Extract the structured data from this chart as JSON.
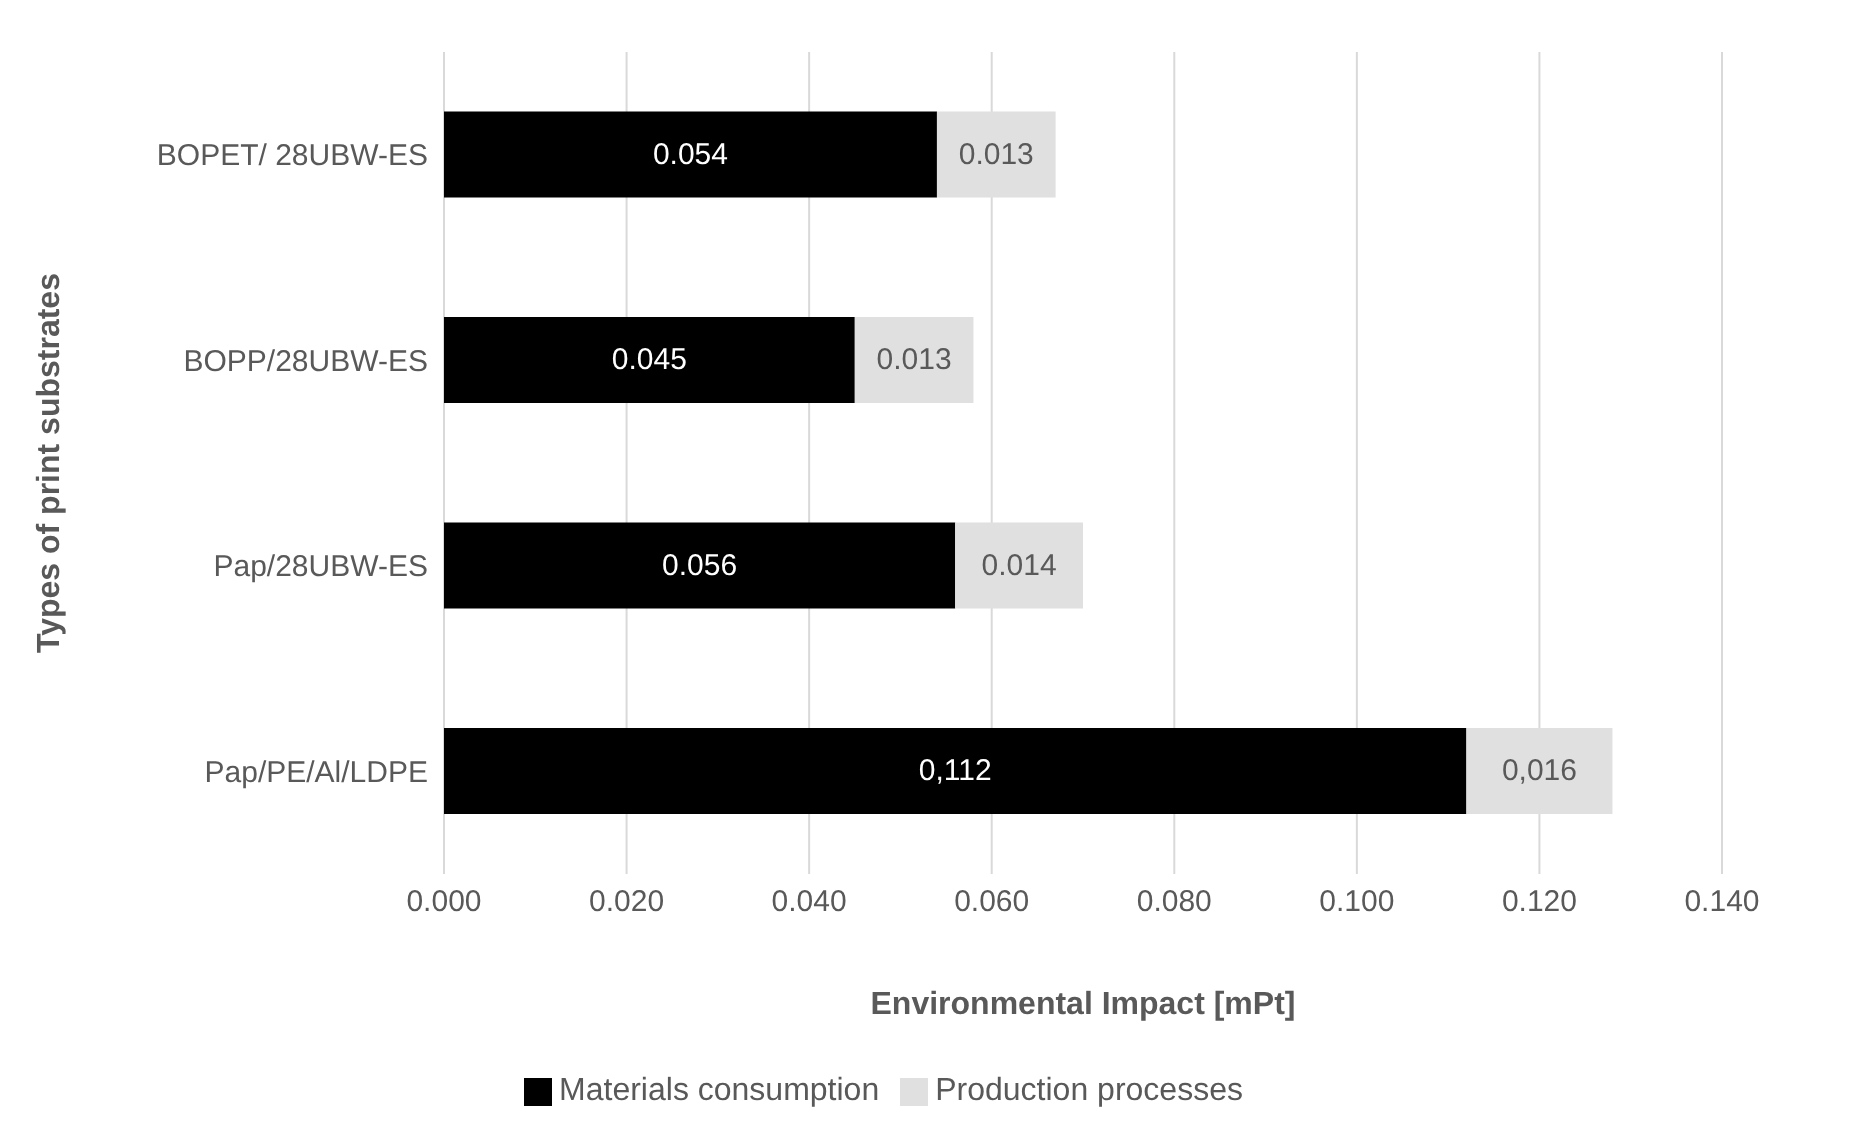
{
  "chart_data": {
    "type": "bar",
    "orientation": "horizontal",
    "stacked": true,
    "xlabel": "Environmental Impact [mPt]",
    "ylabel": "Types of print substrates",
    "categories": [
      "BOPET/ 28UBW-ES",
      "BOPP/28UBW-ES",
      "Pap/28UBW-ES",
      "Pap/PE/Al/LDPE"
    ],
    "series": [
      {
        "name": "Materials consumption",
        "color": "#000000",
        "values": [
          0.054,
          0.045,
          0.056,
          0.112
        ],
        "value_labels": [
          "0.054",
          "0.045",
          "0.056",
          "0,112"
        ]
      },
      {
        "name": "Production processes",
        "color": "#e0e0e0",
        "values": [
          0.013,
          0.013,
          0.014,
          0.016
        ],
        "value_labels": [
          "0.013",
          "0.013",
          "0.014",
          "0,016"
        ]
      }
    ],
    "xlim": [
      0,
      0.14
    ],
    "xticks": [
      {
        "value": 0,
        "label": "0.000"
      },
      {
        "value": 0.02,
        "label": "0.020"
      },
      {
        "value": 0.04,
        "label": "0.040"
      },
      {
        "value": 0.06,
        "label": "0.060"
      },
      {
        "value": 0.08,
        "label": "0.080"
      },
      {
        "value": 0.1,
        "label": "0.100"
      },
      {
        "value": 0.12,
        "label": "0.120"
      },
      {
        "value": 0.14,
        "label": "0.140"
      }
    ],
    "grid": "x",
    "legend": "bottom"
  }
}
